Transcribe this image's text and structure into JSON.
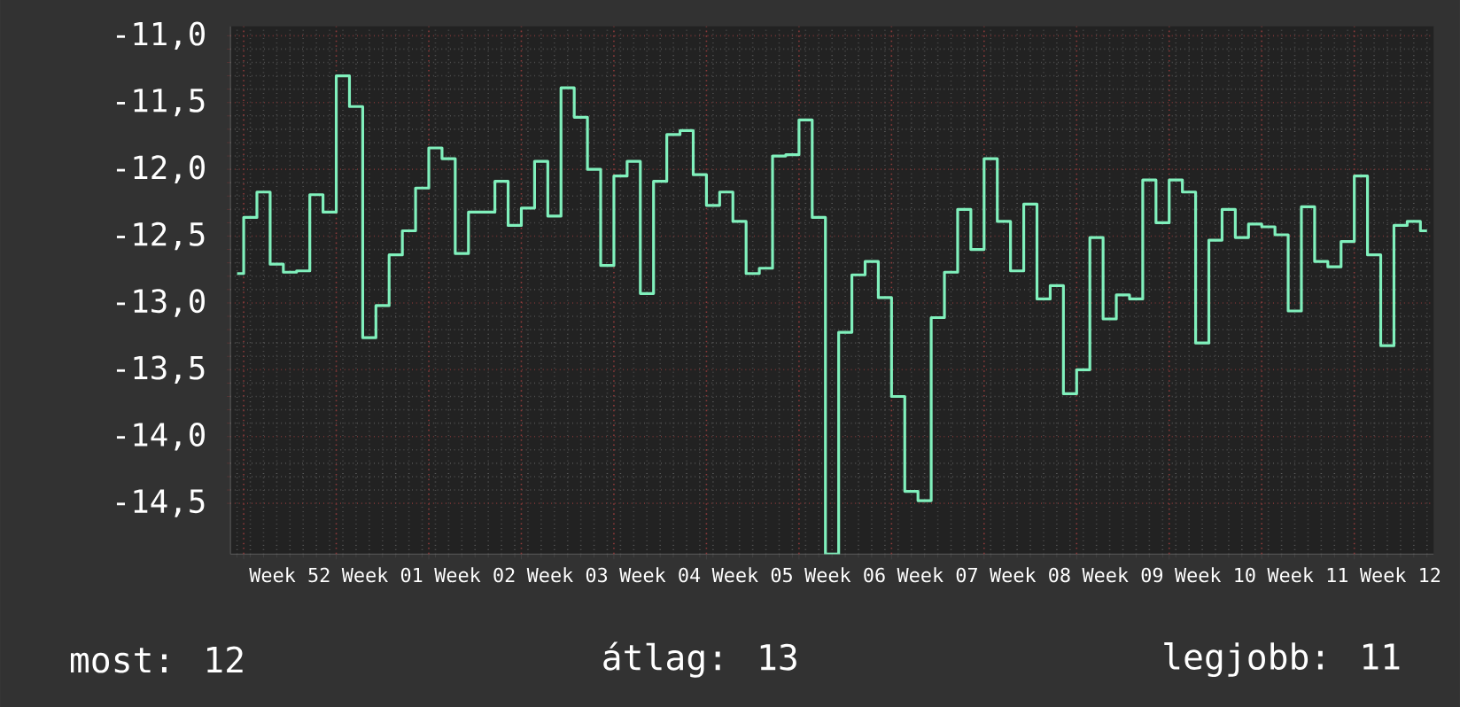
{
  "chart_data": {
    "type": "step",
    "categories": [
      null,
      null,
      null,
      null,
      "Week 52",
      null,
      null,
      null,
      null,
      null,
      null,
      "Week 01",
      null,
      null,
      null,
      null,
      null,
      null,
      "Week 02",
      null,
      null,
      null,
      null,
      null,
      null,
      "Week 03",
      null,
      null,
      null,
      null,
      null,
      null,
      "Week 04",
      null,
      null,
      null,
      null,
      null,
      null,
      "Week 05",
      null,
      null,
      null,
      null,
      null,
      null,
      "Week 06",
      null,
      null,
      null,
      null,
      null,
      null,
      "Week 07",
      null,
      null,
      null,
      null,
      null,
      null,
      "Week 08",
      null,
      null,
      null,
      null,
      null,
      null,
      "Week 09",
      null,
      null,
      null,
      null,
      null,
      null,
      "Week 10",
      null,
      null,
      null,
      null,
      null,
      null,
      "Week 11",
      null,
      null,
      null,
      null,
      null,
      null,
      "Week 12",
      null,
      null
    ],
    "values": [
      -12.78,
      -12.36,
      -12.17,
      -12.71,
      -12.77,
      -12.76,
      -12.19,
      -12.32,
      -11.3,
      -11.53,
      -13.26,
      -13.02,
      -12.64,
      -12.46,
      -12.14,
      -11.84,
      -11.92,
      -12.63,
      -12.32,
      -12.32,
      -12.09,
      -12.42,
      -12.29,
      -11.94,
      -12.35,
      -11.39,
      -11.61,
      -12.0,
      -12.72,
      -12.05,
      -11.94,
      -12.93,
      -12.09,
      -11.74,
      -11.71,
      -12.04,
      -12.27,
      -12.17,
      -12.39,
      -12.78,
      -12.74,
      -11.9,
      -11.89,
      -11.63,
      -12.36,
      -14.88,
      -13.22,
      -12.79,
      -12.69,
      -12.96,
      -13.7,
      -14.41,
      -14.48,
      -13.11,
      -12.77,
      -12.3,
      -12.6,
      -11.92,
      -12.39,
      -12.76,
      -12.26,
      -12.97,
      -12.87,
      -13.68,
      -13.5,
      -12.51,
      -13.12,
      -12.94,
      -12.97,
      -12.08,
      -12.4,
      -12.08,
      -12.17,
      -13.3,
      -12.53,
      -12.3,
      -12.51,
      -12.41,
      -12.43,
      -12.49,
      -13.06,
      -12.28,
      -12.69,
      -12.73,
      -12.54,
      -12.05,
      -12.64,
      -13.32,
      -12.42,
      -12.39,
      -12.46
    ],
    "color": "#80f0bc",
    "ylim": [
      -14.88,
      -10.93
    ],
    "yticks": [
      {
        "value": -11.0,
        "label": "-11,0"
      },
      {
        "value": -11.5,
        "label": "-11,5"
      },
      {
        "value": -12.0,
        "label": "-12,0"
      },
      {
        "value": -12.5,
        "label": "-12,5"
      },
      {
        "value": -13.0,
        "label": "-13,0"
      },
      {
        "value": -13.5,
        "label": "-13,5"
      },
      {
        "value": -14.0,
        "label": "-14,0"
      },
      {
        "value": -14.5,
        "label": "-14,5"
      }
    ],
    "grid": true,
    "marker": "none",
    "line_style": "solid",
    "annotations": [
      "most: 12",
      "átlag: 13",
      "legjobb: 11"
    ]
  }
}
